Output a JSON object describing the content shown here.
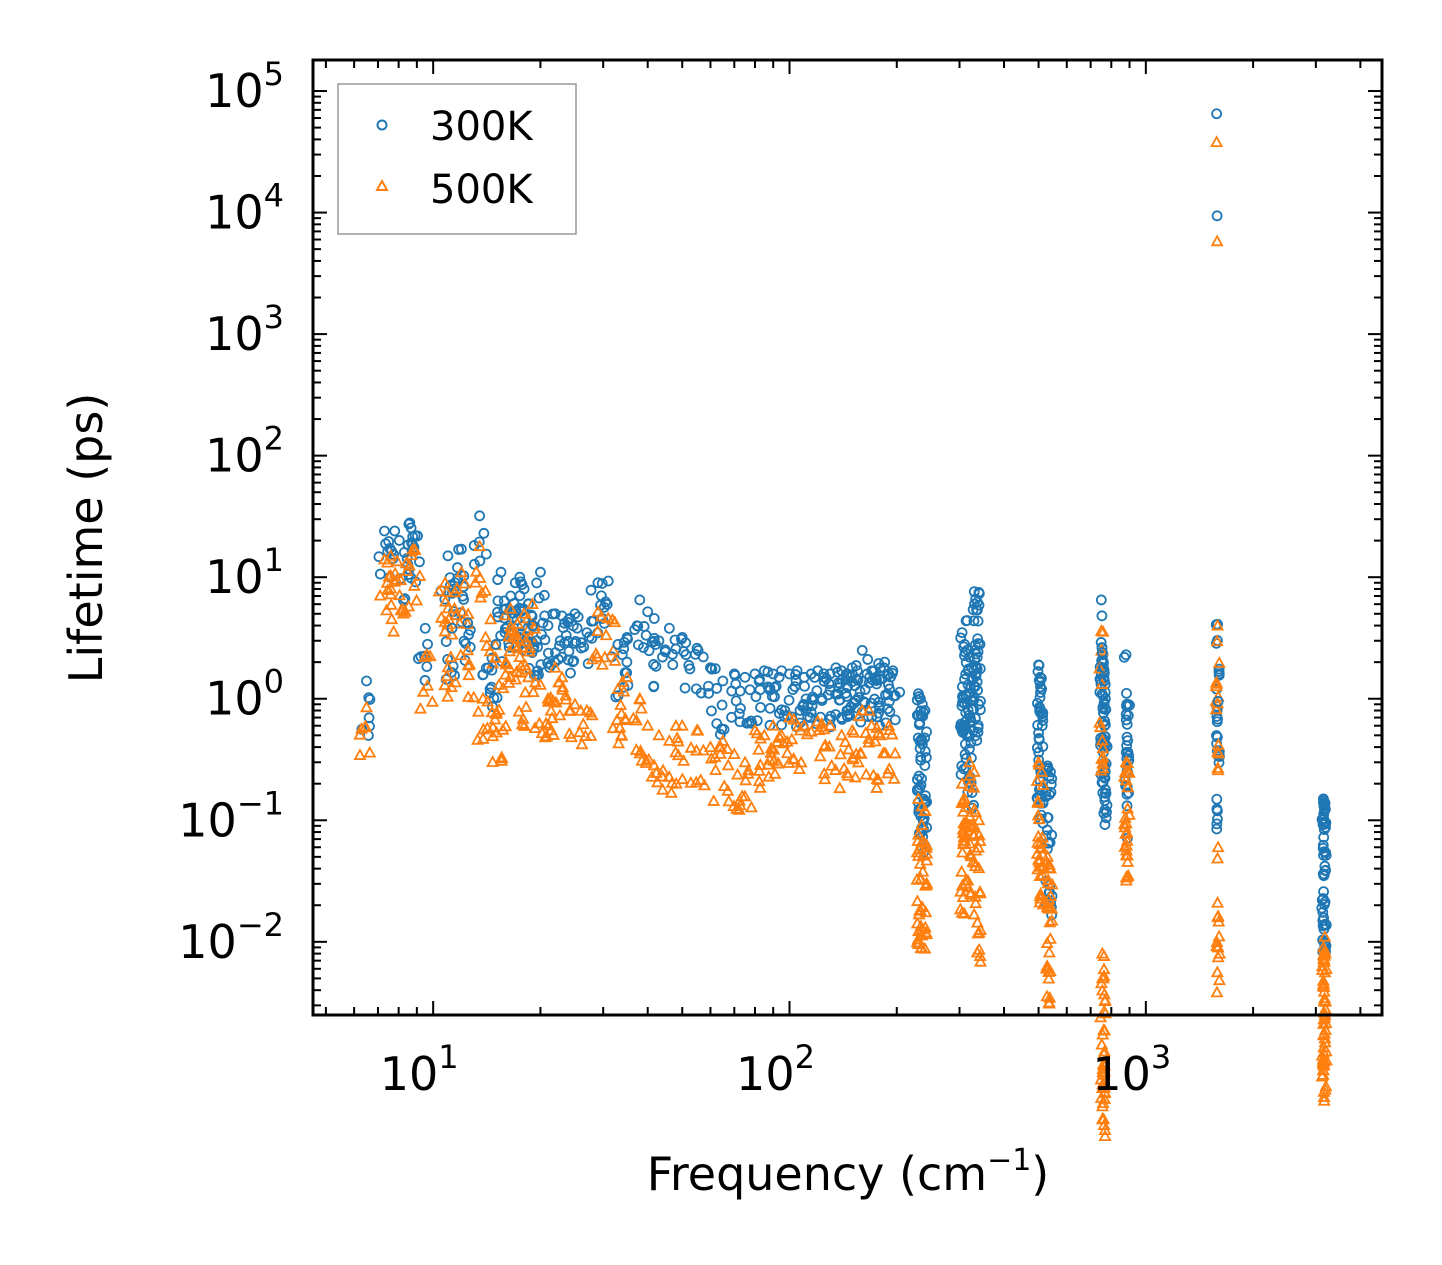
{
  "chart_data": {
    "type": "scatter",
    "title": "",
    "xlabel": "Frequency (cm",
    "xlabel_sup": "−1",
    "xlabel_close": ")",
    "ylabel": "Lifetime (ps)",
    "xscale": "log",
    "yscale": "log",
    "xlim": [
      4.6,
      4600
    ],
    "ylim": [
      0.0025,
      180000
    ],
    "legend_position": "top-left",
    "xticks": [
      {
        "base": "10",
        "exp": "1",
        "value": 10
      },
      {
        "base": "10",
        "exp": "2",
        "value": 100
      },
      {
        "base": "10",
        "exp": "3",
        "value": 1000
      }
    ],
    "yticks": [
      {
        "base": "10",
        "exp": "−2",
        "value": 0.01
      },
      {
        "base": "10",
        "exp": "−1",
        "value": 0.1
      },
      {
        "base": "10",
        "exp": "0",
        "value": 1
      },
      {
        "base": "10",
        "exp": "1",
        "value": 10
      },
      {
        "base": "10",
        "exp": "2",
        "value": 100
      },
      {
        "base": "10",
        "exp": "3",
        "value": 1000
      },
      {
        "base": "10",
        "exp": "4",
        "value": 10000
      },
      {
        "base": "10",
        "exp": "5",
        "value": 100000
      }
    ],
    "series": [
      {
        "name": "300K",
        "marker": "circle",
        "color": "#1f77b4",
        "x": [
          6.5,
          7.3,
          7.8,
          8.3,
          8.6,
          8.9,
          9.5,
          11.0,
          11.3,
          11.7,
          12.0,
          12.5,
          13.5,
          14.3,
          15.0,
          15.5,
          16.0,
          16.5,
          17.0,
          17.5,
          18.0,
          18.5,
          19.0,
          19.5,
          20.0,
          21.0,
          22.0,
          23.0,
          24.0,
          25.0,
          27.0,
          29.0,
          31.0,
          33.0,
          35.0,
          38.0,
          40.0,
          43.0,
          46.0,
          50.0,
          55.0,
          60.0,
          65.0,
          70.0,
          75.0,
          80.0,
          85.0,
          90.0,
          95.0,
          100.0,
          105.0,
          110.0,
          115.0,
          120.0,
          125.0,
          130.0,
          135.0,
          140.0,
          145.0,
          150.0,
          155.0,
          160.0,
          165.0,
          170.0,
          175.0,
          180.0,
          185.0,
          190.0,
          195.0,
          230.0,
          233.0,
          236.0,
          240.0,
          305.0,
          310.0,
          315.0,
          320.0,
          325.0,
          330.0,
          335.0,
          340.0,
          500.0,
          505.0,
          510.0,
          530.0,
          540.0,
          750.0,
          755.0,
          760.0,
          765.0,
          770.0,
          880.0,
          890.0,
          1580.0,
          1585.0,
          1590.0,
          1595.0,
          3150.0,
          3160.0,
          3170.0,
          3180.0
        ],
        "y": [
          1.4,
          24,
          24,
          16,
          28,
          22,
          3.8,
          15,
          3.8,
          12,
          17,
          4.2,
          32,
          1.8,
          2.8,
          11,
          5.5,
          7,
          9,
          10,
          8,
          6,
          4,
          3,
          11,
          4,
          5,
          4.8,
          4.5,
          5,
          3.5,
          9,
          9.3,
          2.8,
          3.2,
          6.5,
          5.2,
          3,
          3.8,
          3.2,
          2.6,
          1.8,
          1.4,
          1.6,
          1.5,
          1.6,
          1.7,
          1.6,
          1.7,
          1.6,
          1.7,
          1.5,
          1.6,
          1.7,
          1.5,
          1.6,
          1.8,
          1.7,
          1.6,
          1.8,
          1.7,
          2.5,
          1.6,
          1.7,
          1.5,
          1.8,
          2.0,
          1.6,
          1.7,
          1.1,
          1.0,
          0.9,
          0.8,
          3.5,
          2.8,
          4.4,
          2.2,
          1.8,
          7.6,
          5.4,
          7.5,
          1.9,
          1.5,
          1.2,
          0.28,
          0.25,
          6.5,
          2.4,
          1.8,
          1.4,
          1.0,
          2.3,
          0.9,
          65000,
          9400,
          4.1,
          0.95,
          0.15,
          0.13,
          0.12,
          0.14
        ]
      },
      {
        "name": "500K",
        "marker": "triangle",
        "color": "#ff7f0e",
        "x": [
          6.5,
          7.3,
          7.6,
          7.9,
          8.4,
          8.8,
          9.6,
          10.8,
          11.2,
          11.5,
          12.0,
          12.5,
          13.5,
          13.8,
          14.5,
          15.0,
          15.3,
          16.0,
          16.5,
          17.0,
          17.5,
          18.0,
          18.5,
          19.0,
          20.0,
          21.0,
          22.0,
          23.0,
          25.0,
          27.0,
          29.0,
          31.0,
          33.0,
          35.0,
          38.0,
          40.0,
          43.0,
          46.0,
          50.0,
          55.0,
          60.0,
          65.0,
          70.0,
          75.0,
          80.0,
          85.0,
          90.0,
          95.0,
          100.0,
          110.0,
          120.0,
          130.0,
          140.0,
          150.0,
          160.0,
          170.0,
          180.0,
          190.0,
          230.0,
          235.0,
          240.0,
          305.0,
          310.0,
          320.0,
          330.0,
          340.0,
          500.0,
          510.0,
          530.0,
          540.0,
          750.0,
          755.0,
          760.0,
          765.0,
          880.0,
          890.0,
          1580.0,
          1585.0,
          1590.0,
          1595.0,
          3150.0,
          3160.0,
          3170.0,
          3180.0
        ],
        "y": [
          0.85,
          14,
          15,
          9.5,
          13,
          17,
          2.3,
          9,
          2.2,
          7.5,
          11,
          2.5,
          18,
          1.0,
          4.5,
          0.75,
          1.3,
          2.0,
          5.5,
          3.5,
          2.2,
          5.0,
          1.5,
          6.0,
          1.3,
          1.0,
          1.8,
          1.5,
          0.9,
          0.8,
          5.2,
          4.6,
          1.2,
          1.5,
          1.0,
          0.6,
          0.5,
          0.45,
          0.6,
          0.55,
          0.4,
          0.45,
          0.35,
          0.3,
          0.55,
          0.5,
          0.6,
          0.5,
          0.7,
          0.6,
          0.65,
          0.6,
          0.5,
          0.55,
          0.8,
          0.6,
          0.5,
          0.6,
          0.15,
          0.13,
          0.12,
          0.2,
          0.15,
          0.3,
          0.25,
          0.1,
          0.3,
          0.25,
          0.05,
          0.04,
          3.6,
          0.008,
          0.005,
          0.0037,
          0.3,
          0.25,
          38000,
          5800,
          4.0,
          0.06,
          0.009,
          0.0072,
          0.008,
          0.011
        ]
      }
    ]
  }
}
